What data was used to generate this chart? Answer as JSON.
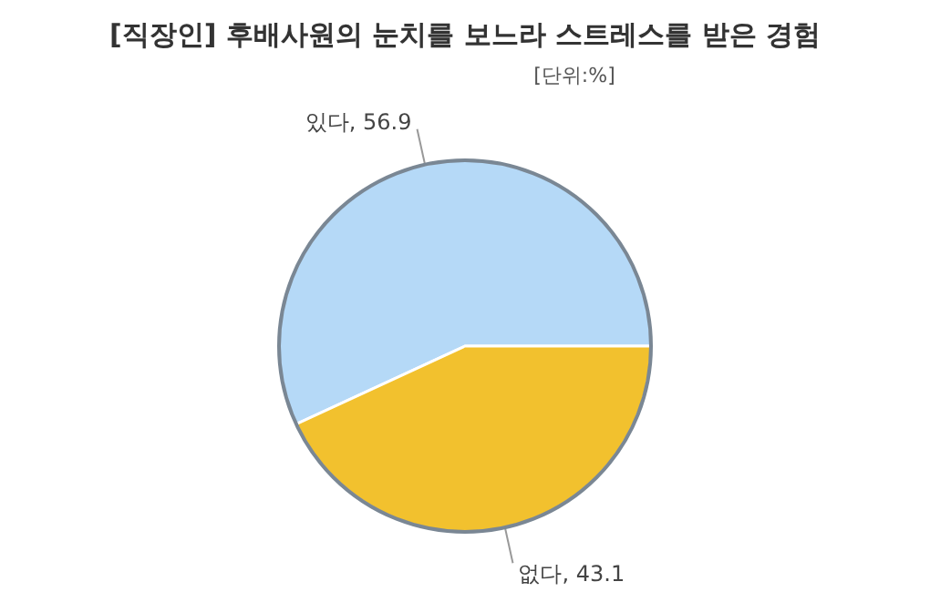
{
  "chart_data": {
    "type": "pie",
    "title": "[직장인] 후배사원의 눈치를 보느라 스트레스를 받은 경험",
    "subtitle": "[단위:%]",
    "categories": [
      "있다",
      "없다"
    ],
    "values": [
      56.9,
      43.1
    ],
    "value_labels": [
      ", 56.9",
      ", 43.1"
    ],
    "colors": [
      "#b5d9f7",
      "#f2c12e"
    ]
  }
}
